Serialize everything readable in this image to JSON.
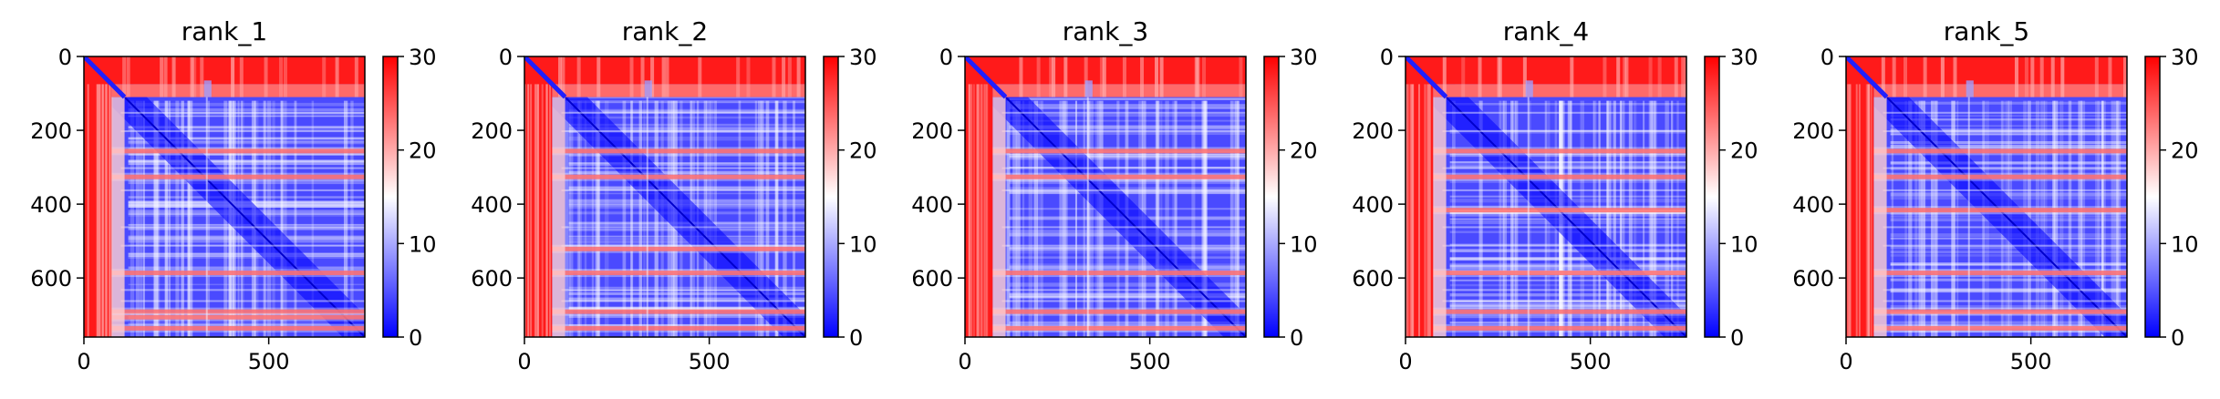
{
  "chart_data": [
    {
      "type": "heatmap",
      "title": "rank_1",
      "x_range": [
        0,
        760
      ],
      "y_range": [
        0,
        760
      ],
      "xticks": [
        0,
        500
      ],
      "xtick_labels": [
        "0",
        "500"
      ],
      "yticks": [
        0,
        200,
        400,
        600
      ],
      "ytick_labels": [
        "0",
        "200",
        "400",
        "600"
      ],
      "colorbar": {
        "ticks": [
          0,
          10,
          20,
          30
        ],
        "tick_labels": [
          "0",
          "10",
          "20",
          "30"
        ],
        "range": [
          0,
          30
        ],
        "colormap": "bwr"
      },
      "red_bands": [
        255,
        325,
        585,
        690,
        705,
        735
      ]
    },
    {
      "type": "heatmap",
      "title": "rank_2",
      "x_range": [
        0,
        760
      ],
      "y_range": [
        0,
        760
      ],
      "xticks": [
        0,
        500
      ],
      "xtick_labels": [
        "0",
        "500"
      ],
      "yticks": [
        0,
        200,
        400,
        600
      ],
      "ytick_labels": [
        "0",
        "200",
        "400",
        "600"
      ],
      "colorbar": {
        "ticks": [
          0,
          10,
          20,
          30
        ],
        "tick_labels": [
          "0",
          "10",
          "20",
          "30"
        ],
        "range": [
          0,
          30
        ],
        "colormap": "bwr"
      },
      "red_bands": [
        255,
        325,
        520,
        585,
        690,
        735
      ]
    },
    {
      "type": "heatmap",
      "title": "rank_3",
      "x_range": [
        0,
        760
      ],
      "y_range": [
        0,
        760
      ],
      "xticks": [
        0,
        500
      ],
      "xtick_labels": [
        "0",
        "500"
      ],
      "yticks": [
        0,
        200,
        400,
        600
      ],
      "ytick_labels": [
        "0",
        "200",
        "400",
        "600"
      ],
      "colorbar": {
        "ticks": [
          0,
          10,
          20,
          30
        ],
        "tick_labels": [
          "0",
          "10",
          "20",
          "30"
        ],
        "range": [
          0,
          30
        ],
        "colormap": "bwr"
      },
      "red_bands": [
        255,
        325,
        585,
        690,
        735
      ]
    },
    {
      "type": "heatmap",
      "title": "rank_4",
      "x_range": [
        0,
        760
      ],
      "y_range": [
        0,
        760
      ],
      "xticks": [
        0,
        500
      ],
      "xtick_labels": [
        "0",
        "500"
      ],
      "yticks": [
        0,
        200,
        400,
        600
      ],
      "ytick_labels": [
        "0",
        "200",
        "400",
        "600"
      ],
      "colorbar": {
        "ticks": [
          0,
          10,
          20,
          30
        ],
        "tick_labels": [
          "0",
          "10",
          "20",
          "30"
        ],
        "range": [
          0,
          30
        ],
        "colormap": "bwr"
      },
      "red_bands": [
        255,
        325,
        415,
        585,
        690,
        735
      ]
    },
    {
      "type": "heatmap",
      "title": "rank_5",
      "x_range": [
        0,
        760
      ],
      "y_range": [
        0,
        760
      ],
      "xticks": [
        0,
        500
      ],
      "xtick_labels": [
        "0",
        "500"
      ],
      "yticks": [
        0,
        200,
        400,
        600
      ],
      "ytick_labels": [
        "0",
        "200",
        "400",
        "600"
      ],
      "colorbar": {
        "ticks": [
          0,
          10,
          20,
          30
        ],
        "tick_labels": [
          "0",
          "10",
          "20",
          "30"
        ],
        "range": [
          0,
          30
        ],
        "colormap": "bwr"
      },
      "red_bands": [
        255,
        325,
        415,
        585,
        690,
        735
      ]
    }
  ],
  "colors": {
    "high": "#ff0000",
    "mid": "#ffffff",
    "low": "#0000ff"
  }
}
